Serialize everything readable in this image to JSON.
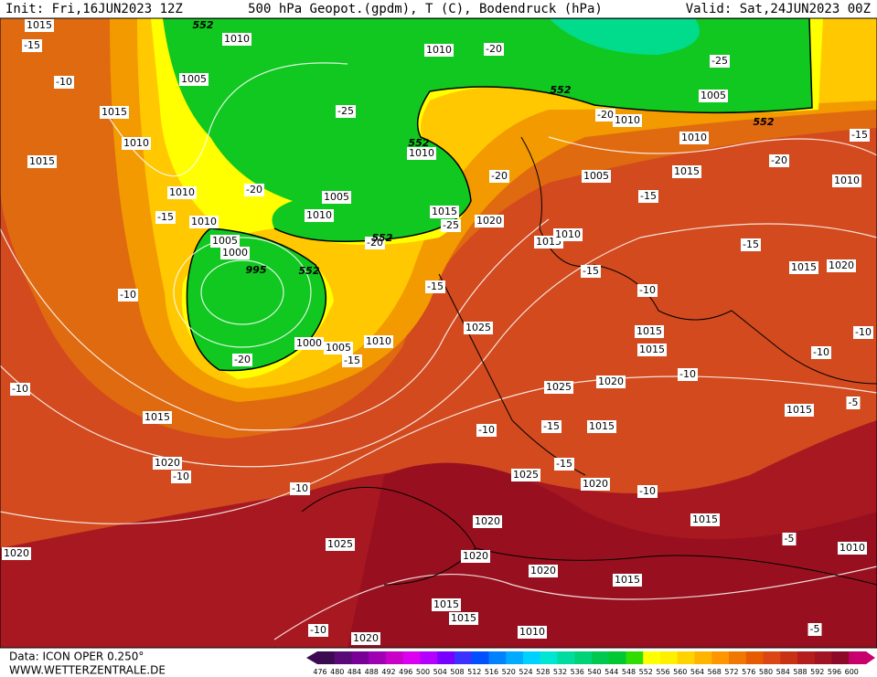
{
  "header": {
    "init": "Init: Fri,16JUN2023 12Z",
    "title": "500 hPa Geopot.(gpdm), T (C), Bodendruck (hPa)",
    "valid": "Valid: Sat,24JUN2023 00Z"
  },
  "footer": {
    "data": "Data: ICON OPER 0.250°",
    "site": "WWW.WETTERZENTRALE.DE"
  },
  "colorbar": {
    "labels": [
      476,
      480,
      484,
      488,
      492,
      496,
      500,
      504,
      508,
      512,
      516,
      520,
      524,
      528,
      532,
      536,
      540,
      544,
      548,
      552,
      556,
      560,
      564,
      568,
      572,
      576,
      580,
      584,
      588,
      592,
      596,
      600
    ],
    "colors": [
      "#3c0a50",
      "#5a0a78",
      "#780096",
      "#a000b4",
      "#c800c8",
      "#dc00f0",
      "#b400ff",
      "#7800ff",
      "#3c32ff",
      "#0050ff",
      "#0082ff",
      "#00aaff",
      "#00d2ff",
      "#00e6d2",
      "#00dca0",
      "#00d278",
      "#00c850",
      "#00c832",
      "#32dc00",
      "#ffff00",
      "#fff000",
      "#ffd200",
      "#ffb400",
      "#ff9600",
      "#f07800",
      "#e65a00",
      "#dc4614",
      "#c83214",
      "#b41e1e",
      "#a01423",
      "#8c0a28",
      "#c8006e"
    ]
  },
  "map_labels": [
    "1015",
    "-15",
    "-10",
    "1015",
    "1010",
    "1015",
    "1010",
    "-15",
    "1010",
    "1005",
    "1000",
    "995",
    "-10",
    "-20",
    "1000",
    "1005",
    "1010",
    "-15",
    "-10",
    "1015",
    "1020",
    "-10",
    "-10",
    "1025",
    "1020",
    "-10",
    "1020",
    "1010",
    "552",
    "1005",
    "1010",
    "-20",
    "-25",
    "1005",
    "552",
    "-25",
    "-20",
    "1010",
    "552",
    "1010",
    "-15",
    "1015",
    "-20",
    "1010",
    "1005",
    "-20",
    "1010",
    "552",
    "1005",
    "-20",
    "1010",
    "1015",
    "-25",
    "1020",
    "-20",
    "552",
    "552",
    "1015",
    "1010",
    "-15",
    "-15",
    "1015",
    "1020",
    "-15",
    "-10",
    "-15",
    "1025",
    "1015",
    "1015",
    "-10",
    "-10",
    "-10",
    "1020",
    "1025",
    "1015",
    "-15",
    "1015",
    "-10",
    "-15",
    "1020",
    "-10",
    "1025",
    "1020",
    "1015",
    "-5",
    "1010",
    "1020",
    "1020",
    "1015",
    "1015",
    "1015",
    "1010",
    "-5",
    "-5"
  ]
}
